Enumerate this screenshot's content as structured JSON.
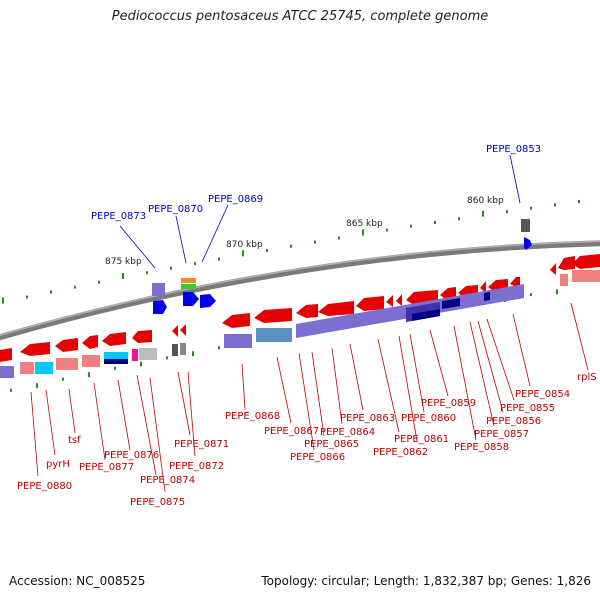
{
  "title": "Pediococcus pentosaceus ATCC 25745, complete genome",
  "footer": {
    "accession": "Accession: NC_008525",
    "info": "Topology: circular; Length: 1,832,387 bp; Genes: 1,826"
  },
  "scale_labels": [
    "875 kbp",
    "870 kbp",
    "865 kbp",
    "860 kbp"
  ],
  "blue_labels": [
    "PEPE_0873",
    "PEPE_0870",
    "PEPE_0869",
    "PEPE_0853"
  ],
  "red_labels": [
    "PEPE_0880",
    "pyrH",
    "tsf",
    "PEPE_0877",
    "PEPE_0876",
    "PEPE_0874",
    "PEPE_0875",
    "PEPE_0871",
    "PEPE_0872",
    "PEPE_0868",
    "PEPE_0867",
    "PEPE_0866",
    "PEPE_0865",
    "PEPE_0864",
    "PEPE_0863",
    "PEPE_0862",
    "PEPE_0861",
    "PEPE_0860",
    "PEPE_0859",
    "PEPE_0858",
    "PEPE_0857",
    "PEPE_0856",
    "PEPE_0855",
    "PEPE_0854",
    "rplS"
  ],
  "colors": {
    "backbone": "#7a7a7a",
    "gene_forward": "#e60000",
    "gene_reverse": "#0000ee",
    "label_red": "#c00000",
    "label_blue": "#0000cc",
    "ticks": "#2e8b22",
    "cog_purple": "#7b6fd0",
    "cog_pink": "#f08080",
    "cog_cyan": "#00c8ff",
    "cog_grey": "#bdbdbd"
  }
}
